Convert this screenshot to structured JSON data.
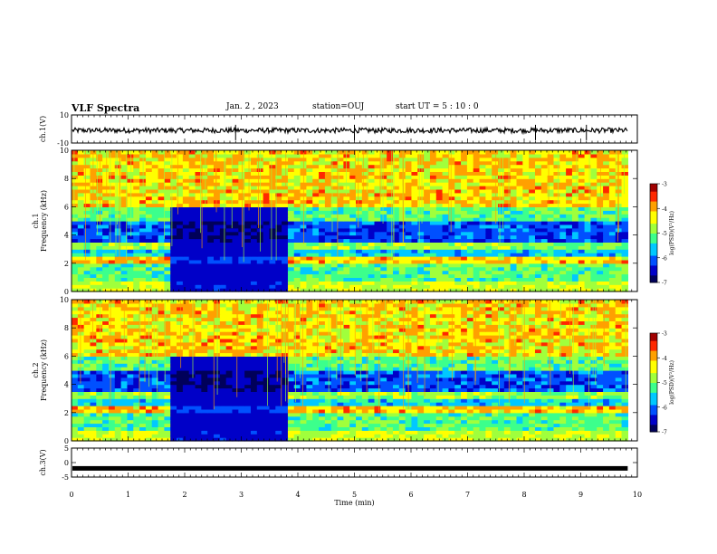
{
  "header": {
    "title": "VLF Spectra",
    "date": "Jan. 2 , 2023",
    "station": "station=OUJ",
    "start": "start UT = 5 : 10 : 0"
  },
  "colors": {
    "colormap": [
      "#00005a",
      "#0000c8",
      "#0050ff",
      "#00c8ff",
      "#3cff8c",
      "#a0ff3c",
      "#ffff00",
      "#ffa000",
      "#ff2800",
      "#a00000",
      "#ffffff"
    ]
  },
  "chart_data": [
    {
      "type": "line",
      "panel": "ch1-waveform",
      "ylabel": "ch.1(V)",
      "ylim": [
        -10,
        10
      ],
      "yticks": [
        "10",
        "-10"
      ],
      "xlim": [
        0,
        10
      ],
      "description_level": 0,
      "series": [
        {
          "values_mean": -1,
          "noise_amplitude": 0.6
        }
      ]
    },
    {
      "type": "heatmap",
      "panel": "ch1-spectrogram",
      "ylabel": "ch.1\nFrequency (kHz)",
      "ylabel_lines": [
        "ch.1",
        "Frequency (kHz)"
      ],
      "ylim": [
        0,
        10
      ],
      "yticks": [
        "0",
        "2",
        "4",
        "6",
        "8",
        "10"
      ],
      "xlim": [
        0,
        9.83
      ],
      "quiet_interval_min": [
        1.75,
        3.8
      ],
      "colorbar": {
        "label": "log(PSD)(V²/Hz)",
        "range": [
          -7,
          -3
        ],
        "ticks": [
          "-3",
          "-4",
          "-5",
          "-6",
          "-7"
        ]
      }
    },
    {
      "type": "heatmap",
      "panel": "ch2-spectrogram",
      "ylabel": "ch.2\nFrequency (kHz)",
      "ylabel_lines": [
        "ch.2",
        "Frequency (kHz)"
      ],
      "ylim": [
        0,
        10
      ],
      "yticks": [
        "0",
        "2",
        "4",
        "6",
        "8",
        "10"
      ],
      "xlim": [
        0,
        9.83
      ],
      "quiet_interval_min": [
        1.75,
        3.8
      ],
      "colorbar": {
        "label": "log(PSD)(V²/Hz)",
        "range": [
          -7,
          -3
        ],
        "ticks": [
          "-3",
          "-4",
          "-5",
          "-6",
          "-7"
        ]
      }
    },
    {
      "type": "line",
      "panel": "ch3-waveform",
      "ylabel": "ch.3(V)",
      "ylim": [
        -5,
        5
      ],
      "yticks": [
        "5",
        "0",
        "-5"
      ],
      "xlim": [
        0,
        10
      ],
      "series": [
        {
          "values_mean": -2
        }
      ]
    }
  ],
  "xaxis": {
    "label": "Time (min)",
    "ticks": [
      "0",
      "1",
      "2",
      "3",
      "4",
      "5",
      "6",
      "7",
      "8",
      "9",
      "10"
    ],
    "range": [
      0,
      10
    ]
  }
}
